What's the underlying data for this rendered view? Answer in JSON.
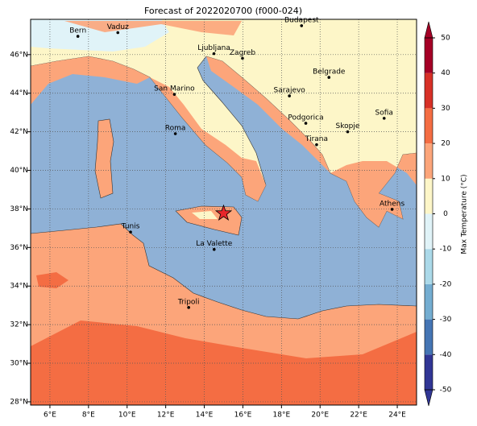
{
  "title": "Forecast of 2022020700 (f000-024)",
  "map": {
    "lonlim": [
      5,
      25
    ],
    "latlim": [
      27.83,
      47.83
    ],
    "lon_ticks": [
      {
        "value": 6,
        "label": "6°E"
      },
      {
        "value": 8,
        "label": "8°E"
      },
      {
        "value": 10,
        "label": "10°E"
      },
      {
        "value": 12,
        "label": "12°E"
      },
      {
        "value": 14,
        "label": "14°E"
      },
      {
        "value": 16,
        "label": "16°E"
      },
      {
        "value": 18,
        "label": "18°E"
      },
      {
        "value": 20,
        "label": "20°E"
      },
      {
        "value": 22,
        "label": "22°E"
      },
      {
        "value": 24,
        "label": "24°E"
      }
    ],
    "lat_ticks": [
      {
        "value": 28,
        "label": "28°N"
      },
      {
        "value": 30,
        "label": "30°N"
      },
      {
        "value": 32,
        "label": "32°N"
      },
      {
        "value": 34,
        "label": "34°N"
      },
      {
        "value": 36,
        "label": "36°N"
      },
      {
        "value": 38,
        "label": "38°N"
      },
      {
        "value": 40,
        "label": "40°N"
      },
      {
        "value": 42,
        "label": "42°N"
      },
      {
        "value": 44,
        "label": "44°N"
      },
      {
        "value": 46,
        "label": "46°N"
      }
    ],
    "grid": true,
    "cities": [
      {
        "name": "Bern",
        "lon": 7.45,
        "lat": 46.95
      },
      {
        "name": "Vaduz",
        "lon": 9.52,
        "lat": 47.14
      },
      {
        "name": "Budapest",
        "lon": 19.04,
        "lat": 47.5
      },
      {
        "name": "Ljubljana",
        "lon": 14.5,
        "lat": 46.05
      },
      {
        "name": "Zagreb",
        "lon": 15.98,
        "lat": 45.81
      },
      {
        "name": "San Marino",
        "lon": 12.45,
        "lat": 43.94
      },
      {
        "name": "Sarajevo",
        "lon": 18.41,
        "lat": 43.86
      },
      {
        "name": "Belgrade",
        "lon": 20.46,
        "lat": 44.82
      },
      {
        "name": "Roma",
        "lon": 12.5,
        "lat": 41.9
      },
      {
        "name": "Podgorica",
        "lon": 19.26,
        "lat": 42.44
      },
      {
        "name": "Skopje",
        "lon": 21.43,
        "lat": 42.0
      },
      {
        "name": "Sofia",
        "lon": 23.32,
        "lat": 42.7
      },
      {
        "name": "Tirana",
        "lon": 19.82,
        "lat": 41.33
      },
      {
        "name": "Athens",
        "lon": 23.73,
        "lat": 37.98
      },
      {
        "name": "Tunis",
        "lon": 10.18,
        "lat": 36.8
      },
      {
        "name": "La Valette",
        "lon": 14.51,
        "lat": 35.9
      },
      {
        "name": "Tripoli",
        "lon": 13.19,
        "lat": 32.89
      }
    ],
    "marker": {
      "lon": 15.0,
      "lat": 37.77,
      "color": "#e8262a"
    }
  },
  "colorbar": {
    "label": "Max Temperature (°C)",
    "lim": [
      -50,
      50
    ],
    "ticks": [
      -50,
      -40,
      -30,
      -20,
      -10,
      0,
      10,
      20,
      30,
      40,
      50
    ],
    "colors": [
      "#313695",
      "#4575b4",
      "#74add1",
      "#abd9e9",
      "#e0f3f8",
      "#fdf6c8",
      "#fca57a",
      "#f46d43",
      "#d73027",
      "#a50026"
    ]
  }
}
